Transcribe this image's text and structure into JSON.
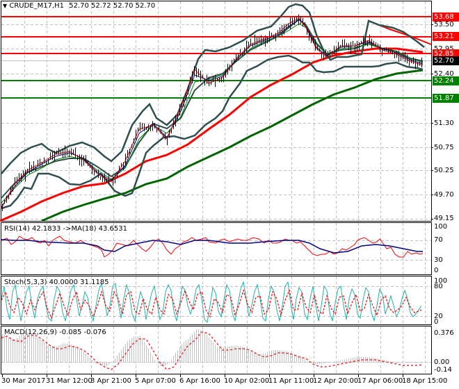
{
  "header": {
    "symbol_label": "CRUDE_M17,H1",
    "ohlc": "52.70 52.72 52.70 52.70",
    "menu_arrow": "triangle-down-icon"
  },
  "main_pane": {
    "y_ticks": [
      "53.50",
      "52.40",
      "51.30",
      "50.75",
      "50.25",
      "49.70",
      "49.15"
    ],
    "price_tags": [
      {
        "value": "53.68",
        "color": "#ff0000"
      },
      {
        "value": "53.21",
        "color": "#ff0000"
      },
      {
        "value": "52.85",
        "color": "#ff0000"
      },
      {
        "value": "52.70",
        "color": "#000000"
      },
      {
        "value": "52.24",
        "color": "#008000"
      },
      {
        "value": "51.87",
        "color": "#008000"
      }
    ],
    "hidden_tick": "52.95"
  },
  "rsi_pane": {
    "label": "RSI(14) 42.1833  ->MA(18) 43.6531",
    "y_ticks": [
      "100",
      "70",
      "30",
      "0"
    ]
  },
  "stoch_pane": {
    "label": "Stoch(5,3,3) 40.0000 31.1185",
    "y_ticks": [
      "100",
      "80",
      "20",
      "0"
    ]
  },
  "macd_pane": {
    "label": "MACD(12,26,9) -0.085 -0.076",
    "y_ticks": [
      "0.376",
      "0.00",
      "-0.14"
    ]
  },
  "x_axis": {
    "labels": [
      "30 Mar 2017",
      "31 Mar 12:00",
      "3 Apr 21:00",
      "5 Apr 07:00",
      "6 Apr 16:00",
      "10 Apr 02:00",
      "11 Apr 11:00",
      "12 Apr 20:00",
      "17 Apr 06:00",
      "18 Apr 15:00"
    ]
  },
  "colors": {
    "resistance": "#ff0000",
    "support": "#008000",
    "bollinger": "#2f4f4f",
    "ma_fast_red": "#ff0000",
    "ma_blue": "#00008b",
    "ma_green": "#008000",
    "ma_slow_red": "#ff0000",
    "ma_slow_green": "#006400",
    "rsi": "#ff0000",
    "rsi_ma": "#000080",
    "stoch_main": "#20b2aa",
    "stoch_signal": "#ff0000",
    "macd_hist": "#c0c0c0",
    "macd_signal": "#ff0000",
    "grid": "#c0c0c0"
  },
  "chart_data": {
    "type": "line",
    "title": "CRUDE_M17,H1",
    "ohlc_last": {
      "open": 52.7,
      "high": 52.72,
      "low": 52.7,
      "close": 52.7
    },
    "x": [
      "30 Mar 2017",
      "31 Mar 12:00",
      "3 Apr 21:00",
      "5 Apr 07:00",
      "6 Apr 16:00",
      "10 Apr 02:00",
      "11 Apr 11:00",
      "12 Apr 20:00",
      "17 Apr 06:00",
      "18 Apr 15:00"
    ],
    "ylim": [
      49.15,
      53.8
    ],
    "horizontal_levels": [
      {
        "value": 53.68,
        "type": "resistance"
      },
      {
        "value": 53.21,
        "type": "resistance"
      },
      {
        "value": 52.85,
        "type": "resistance"
      },
      {
        "value": 52.7,
        "type": "current_price"
      },
      {
        "value": 52.24,
        "type": "support"
      },
      {
        "value": 51.87,
        "type": "support"
      }
    ],
    "series": [
      {
        "name": "Close (approx)",
        "values": [
          49.4,
          50.4,
          50.1,
          50.9,
          52.5,
          53.0,
          53.6,
          53.0,
          53.2,
          52.7
        ]
      },
      {
        "name": "MA slow red (approx)",
        "values": [
          48.6,
          49.6,
          50.0,
          50.6,
          51.1,
          51.9,
          52.5,
          52.9,
          53.0,
          52.9
        ]
      },
      {
        "name": "MA slow green (approx)",
        "values": [
          48.2,
          49.0,
          49.5,
          49.9,
          50.6,
          51.2,
          51.8,
          52.2,
          52.4,
          52.5
        ]
      }
    ],
    "subcharts": [
      {
        "name": "RSI(14)",
        "value": 42.1833,
        "ma_label": "MA(18)",
        "ma_value": 43.6531,
        "ylim": [
          0,
          100
        ],
        "levels": [
          30,
          70
        ]
      },
      {
        "name": "Stoch(5,3,3)",
        "main": 40.0,
        "signal": 31.1185,
        "ylim": [
          0,
          100
        ],
        "levels": [
          20,
          80
        ]
      },
      {
        "name": "MACD(12,26,9)",
        "macd": -0.085,
        "signal": -0.076,
        "ylim": [
          -0.14,
          0.376
        ]
      }
    ]
  }
}
